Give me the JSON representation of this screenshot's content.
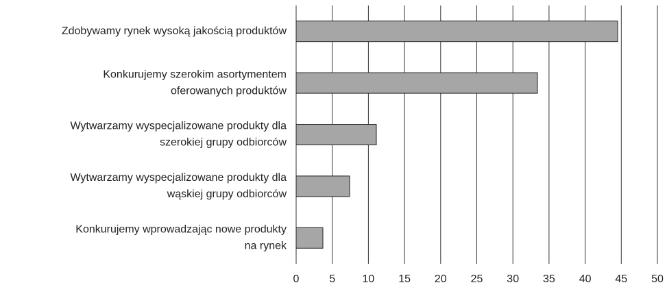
{
  "chart_data": {
    "type": "bar",
    "orientation": "horizontal",
    "categories": [
      [
        "Zdobywamy rynek wysoką jakością produktów"
      ],
      [
        "Konkurujemy szerokim asortymentem",
        "oferowanych produktów"
      ],
      [
        "Wytwarzamy wyspecjalizowane produkty dla",
        "szerokiej grupy odbiorców"
      ],
      [
        "Wytwarzamy wyspecjalizowane produkty dla",
        "wąskiej grupy odbiorców"
      ],
      [
        "Konkurujemy wprowadzając nowe produkty",
        "na rynek"
      ]
    ],
    "values": [
      44.5,
      33.4,
      11.1,
      7.4,
      3.7
    ],
    "color": "#a6a6a6",
    "xlim": [
      0,
      50
    ],
    "xticks": [
      0,
      5,
      10,
      15,
      20,
      25,
      30,
      35,
      40,
      45,
      50
    ],
    "grid": true
  }
}
